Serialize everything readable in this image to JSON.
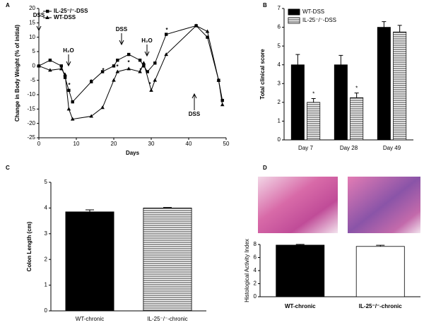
{
  "chart_data": [
    {
      "type": "line",
      "panel": "A",
      "x_label": "Days",
      "y_label": "Change in Body Weight (% of initial)",
      "xlim": [
        0,
        50
      ],
      "xticks": [
        0,
        10,
        20,
        30,
        40,
        50
      ],
      "ylim": [
        -25,
        20
      ],
      "yticks": [
        -25,
        -20,
        -15,
        -10,
        -5,
        0,
        5,
        10,
        15,
        20
      ],
      "legend": "upper left",
      "series": [
        {
          "name": "IL-25⁻/⁻-DSS",
          "color": "#000000",
          "marker": "square",
          "x": [
            0,
            3,
            6,
            7,
            8,
            9,
            14,
            17,
            20,
            21,
            24,
            27,
            28,
            29,
            31,
            34,
            42,
            45,
            48,
            49
          ],
          "values": [
            0,
            2,
            0,
            -4,
            -8.5,
            -12.5,
            -5.5,
            -2,
            0,
            2,
            4,
            2,
            0,
            -2,
            1,
            11,
            14,
            10,
            -5,
            -12
          ]
        },
        {
          "name": "WT-DSS",
          "color": "#000000",
          "marker": "triangle",
          "x": [
            0,
            3,
            6,
            7,
            8,
            9,
            14,
            17,
            20,
            21,
            24,
            27,
            28,
            30,
            31,
            34,
            42,
            45,
            48,
            49
          ],
          "values": [
            0,
            -1.5,
            -1,
            -3,
            -15,
            -18.5,
            -17.5,
            -14.5,
            -5,
            -2,
            -1,
            -2,
            1,
            -8.5,
            -5,
            4,
            14,
            12,
            -5,
            -13.5
          ]
        }
      ],
      "annotations": [
        "DSS",
        "H₂O",
        "DSS",
        "H₂O",
        "DSS",
        "*",
        "*",
        "*",
        "*",
        "*",
        "*",
        "*",
        "*"
      ]
    },
    {
      "type": "grouped_bar",
      "panel": "B",
      "y_label": "Total clinical score",
      "categories": [
        "Day 7",
        "Day 28",
        "Day 49"
      ],
      "ylim": [
        0,
        7
      ],
      "yticks": [
        0,
        1,
        2,
        3,
        4,
        5,
        6,
        7
      ],
      "legend": "upper left",
      "series": [
        {
          "name": "WT-DSS",
          "color": "#000000",
          "hatched": false,
          "values": [
            4,
            4,
            6
          ],
          "errors": [
            0.55,
            0.5,
            0.3
          ]
        },
        {
          "name": "IL-25⁻/⁻-DSS",
          "color": "#ffffff",
          "hatched": true,
          "values": [
            2,
            2.25,
            5.75
          ],
          "errors": [
            0.2,
            0.25,
            0.35
          ]
        }
      ],
      "annotations": [
        "*",
        "*"
      ]
    },
    {
      "type": "bar",
      "panel": "C",
      "y_label": "Colon Length (cm)",
      "categories": [
        "WT-chronic",
        "IL-25⁻/⁻-chronic"
      ],
      "values": [
        3.85,
        4.0
      ],
      "errors": [
        0.08,
        0.02
      ],
      "colors": [
        "#000000",
        "#ffffff"
      ],
      "hatched": [
        false,
        true
      ],
      "ylim": [
        0,
        5
      ],
      "yticks": [
        0,
        1,
        2,
        3,
        4,
        5
      ]
    },
    {
      "type": "bar",
      "panel": "D",
      "y_label": "Histological Activity Index",
      "categories": [
        "WT-chronic",
        "IL-25⁻/⁻-chronic"
      ],
      "values": [
        7.9,
        7.7
      ],
      "errors": [
        0.12,
        0.18
      ],
      "colors": [
        "#000000",
        "#ffffff"
      ],
      "hatched": [
        false,
        false
      ],
      "ylim": [
        0,
        8
      ],
      "yticks": [
        0,
        2,
        4,
        6,
        8
      ]
    }
  ]
}
